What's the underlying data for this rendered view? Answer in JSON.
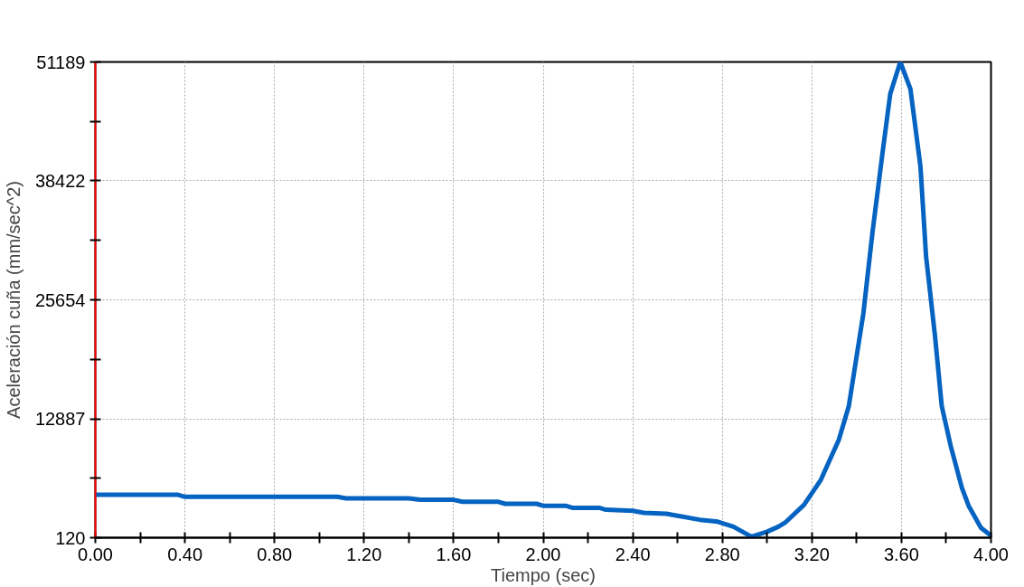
{
  "chart_data": {
    "type": "line",
    "xlabel": "Tiempo (sec)",
    "ylabel": "Aceleración cuña (mm/sec^2)",
    "x": [
      0,
      0.37,
      0.4,
      1.08,
      1.12,
      1.4,
      1.45,
      1.6,
      1.64,
      1.8,
      1.83,
      1.97,
      2.0,
      2.1,
      2.13,
      2.25,
      2.28,
      2.4,
      2.45,
      2.55,
      2.6,
      2.7,
      2.78,
      2.85,
      2.93,
      3.0,
      3.05,
      3.08,
      3.165,
      3.24,
      3.32,
      3.365,
      3.43,
      3.47,
      3.515,
      3.55,
      3.595,
      3.64,
      3.685,
      3.71,
      3.75,
      3.78,
      3.82,
      3.87,
      3.9,
      3.955,
      4.0
    ],
    "series": [
      {
        "color": "#0563c1",
        "values": [
          4724,
          4724,
          4510,
          4510,
          4350,
          4350,
          4188,
          4188,
          3974,
          3974,
          3760,
          3760,
          3546,
          3546,
          3332,
          3332,
          3118,
          3011,
          2797,
          2690,
          2475,
          2047,
          1833,
          1298,
          227,
          762,
          1298,
          1726,
          3653,
          6330,
          10612,
          14252,
          24209,
          32774,
          41339,
          47762,
          51189,
          48297,
          39946,
          30311,
          21746,
          14252,
          9970,
          5473,
          3546,
          1191,
          334
        ]
      }
    ],
    "xlim": [
      0,
      4.0
    ],
    "ylim": [
      120,
      51189
    ],
    "xticks": [
      {
        "value": 0,
        "label": "0.00"
      },
      {
        "value": 0.2,
        "label": null
      },
      {
        "value": 0.4,
        "label": "0.40"
      },
      {
        "value": 0.6,
        "label": null
      },
      {
        "value": 0.8,
        "label": "0.80"
      },
      {
        "value": 1.0,
        "label": null
      },
      {
        "value": 1.2,
        "label": "1.20"
      },
      {
        "value": 1.4,
        "label": null
      },
      {
        "value": 1.6,
        "label": "1.60"
      },
      {
        "value": 1.8,
        "label": null
      },
      {
        "value": 2.0,
        "label": "2.00"
      },
      {
        "value": 2.2,
        "label": null
      },
      {
        "value": 2.4,
        "label": "2.40"
      },
      {
        "value": 2.6,
        "label": null
      },
      {
        "value": 2.8,
        "label": "2.80"
      },
      {
        "value": 3.0,
        "label": null
      },
      {
        "value": 3.2,
        "label": "3.20"
      },
      {
        "value": 3.4,
        "label": null
      },
      {
        "value": 3.6,
        "label": "3.60"
      },
      {
        "value": 3.8,
        "label": null
      },
      {
        "value": 4.0,
        "label": "4.00"
      }
    ],
    "yticks": [
      120,
      {
        "value": 6503.5,
        "label": null
      },
      12887,
      {
        "value": 19270.5,
        "label": null
      },
      25654,
      {
        "value": 32038,
        "label": null
      },
      38422,
      {
        "value": 44805.5,
        "label": null
      },
      51189
    ],
    "grid": true,
    "marker": "none",
    "line_style": "solid"
  }
}
